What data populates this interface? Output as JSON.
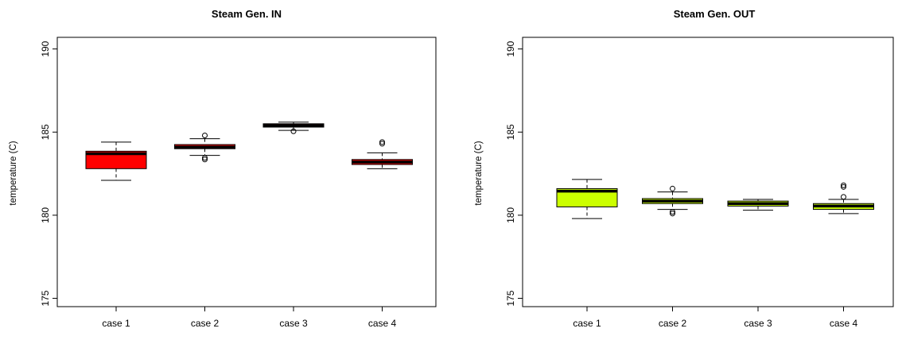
{
  "chart_data": [
    {
      "type": "box",
      "title": "Steam Gen. IN",
      "xlabel": "",
      "ylabel": "temperature (C)",
      "ylim": [
        174.5,
        190.7
      ],
      "yticks": [
        175,
        180,
        185,
        190
      ],
      "grid": false,
      "box_color": "#ff0000",
      "categories": [
        "case 1",
        "case 2",
        "case 3",
        "case 4"
      ],
      "boxes": [
        {
          "min": 182.1,
          "q1": 182.8,
          "median": 183.7,
          "q3": 183.85,
          "max": 184.4,
          "outliers": []
        },
        {
          "min": 183.6,
          "q1": 184.0,
          "median": 184.1,
          "q3": 184.25,
          "max": 184.6,
          "outliers": [
            184.8,
            183.45,
            183.35
          ]
        },
        {
          "min": 185.1,
          "q1": 185.3,
          "median": 185.4,
          "q3": 185.5,
          "max": 185.6,
          "outliers": [
            185.05
          ]
        },
        {
          "min": 182.8,
          "q1": 183.05,
          "median": 183.2,
          "q3": 183.35,
          "max": 183.75,
          "outliers": [
            184.3,
            184.4
          ]
        }
      ]
    },
    {
      "type": "box",
      "title": "Steam Gen. OUT",
      "xlabel": "",
      "ylabel": "temperature (C)",
      "ylim": [
        174.5,
        190.7
      ],
      "yticks": [
        175,
        180,
        185,
        190
      ],
      "grid": false,
      "box_color": "#ccff00",
      "categories": [
        "case 1",
        "case 2",
        "case 3",
        "case 4"
      ],
      "boxes": [
        {
          "min": 179.8,
          "q1": 180.5,
          "median": 181.45,
          "q3": 181.6,
          "max": 182.15,
          "outliers": []
        },
        {
          "min": 180.35,
          "q1": 180.7,
          "median": 180.85,
          "q3": 181.0,
          "max": 181.4,
          "outliers": [
            181.6,
            180.2,
            180.1
          ]
        },
        {
          "min": 180.3,
          "q1": 180.55,
          "median": 180.7,
          "q3": 180.85,
          "max": 180.95,
          "outliers": []
        },
        {
          "min": 180.1,
          "q1": 180.35,
          "median": 180.55,
          "q3": 180.7,
          "max": 180.95,
          "outliers": [
            181.1,
            181.7,
            181.8
          ]
        }
      ]
    }
  ]
}
